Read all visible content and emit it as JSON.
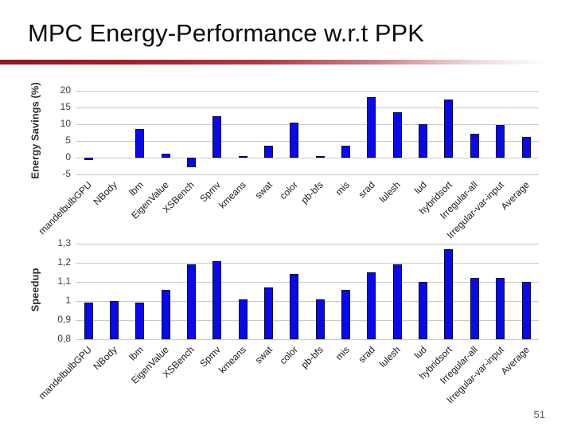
{
  "slide": {
    "title": "MPC Energy-Performance w.r.t PPK",
    "page_number": "51",
    "accent_color": "#8f161d",
    "bar_color": "#0a0ae2",
    "bar_border_color": "#000046"
  },
  "chart_data": [
    {
      "type": "bar",
      "title": "",
      "ylabel": "Energy Savings (%)",
      "xlabel": "",
      "categories": [
        "mandelbulbGPU",
        "NBody",
        "lbm",
        "EigenValue",
        "XSBench",
        "Spmv",
        "kmeans",
        "swat",
        "color",
        "pb-bfs",
        "mis",
        "srad",
        "lulesh",
        "lud",
        "hybridsort",
        "Irregular-all",
        "Irregular-var-input",
        "Average"
      ],
      "values": [
        -0.7,
        0,
        8.7,
        1.3,
        -2.9,
        12.3,
        0.5,
        3.7,
        10.6,
        0.4,
        3.7,
        18.1,
        13.5,
        9.9,
        17.5,
        7.2,
        9.8,
        6.2
      ],
      "ylim": [
        -5,
        20.95
      ],
      "yticks": [
        {
          "value": 20,
          "label": "20"
        },
        {
          "value": 15,
          "label": "15"
        },
        {
          "value": 10,
          "label": "10"
        },
        {
          "value": 5,
          "label": "5"
        },
        {
          "value": 0,
          "label": "0"
        },
        {
          "value": -5,
          "label": "-5"
        }
      ],
      "grid": true,
      "legend": "none"
    },
    {
      "type": "bar",
      "title": "",
      "ylabel": "Speedup",
      "xlabel": "",
      "categories": [
        "mandelbulbGPU",
        "NBody",
        "lbm",
        "EigenValue",
        "XSBench",
        "Spmv",
        "kmeans",
        "swat",
        "color",
        "pb-bfs",
        "mis",
        "srad",
        "lulesh",
        "lud",
        "hybridsort",
        "Irregular-all",
        "Irregular-var-input",
        "Average"
      ],
      "values": [
        0.99,
        1.0,
        0.99,
        1.06,
        1.19,
        1.21,
        1.01,
        1.07,
        1.14,
        1.01,
        1.06,
        1.15,
        1.19,
        1.1,
        1.27,
        1.12,
        1.12,
        1.1
      ],
      "ylim": [
        0.8,
        1.3167
      ],
      "yticks": [
        {
          "value": 1.3,
          "label": "1,3"
        },
        {
          "value": 1.2,
          "label": "1,2"
        },
        {
          "value": 1.1,
          "label": "1,1"
        },
        {
          "value": 1.0,
          "label": "1"
        },
        {
          "value": 0.9,
          "label": "0,9"
        },
        {
          "value": 0.8,
          "label": "0,8"
        }
      ],
      "grid": true,
      "legend": "none"
    }
  ]
}
